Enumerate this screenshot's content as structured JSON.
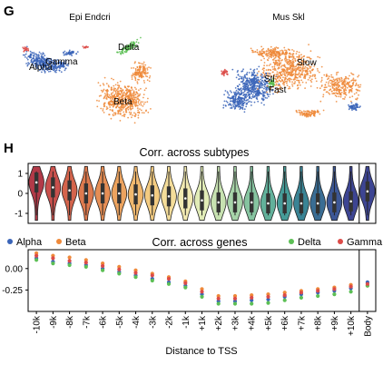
{
  "panels": {
    "g": {
      "letter": "G",
      "epi_title": "Epi Endcri",
      "mus_title": "Mus Skl",
      "epi_labels": [
        "Delta",
        "Alpha",
        "Gamma",
        "Beta"
      ],
      "mus_labels": [
        "Slow",
        "Stl",
        "Fast"
      ]
    },
    "h": {
      "letter": "H"
    }
  },
  "colors": {
    "alpha": "#3a64b8",
    "beta": "#ef8a3a",
    "delta": "#5cbf55",
    "gamma": "#dc4b48",
    "violin_palette": [
      "#b23a48",
      "#c9504c",
      "#d4644c",
      "#de7a4e",
      "#e68e55",
      "#eca35f",
      "#f0b86e",
      "#f3cb81",
      "#f4dd9a",
      "#f1e9b1",
      "#e1ecb7",
      "#c7e2b1",
      "#a7d4a9",
      "#86c4a0",
      "#62b19b",
      "#469c98",
      "#3a8495",
      "#3a6d94",
      "#3c5796",
      "#3d4593"
    ]
  },
  "chart_data": [
    {
      "type": "violin",
      "title": "Corr. across subtypes",
      "categories": [
        "-10k",
        "-9k",
        "-8k",
        "-7k",
        "-6k",
        "-5k",
        "-4k",
        "-3k",
        "-2k",
        "-1k",
        "+1k",
        "+2k",
        "+3k",
        "+4k",
        "+5k",
        "+6k",
        "+7k",
        "+8k",
        "+9k",
        "+10k",
        "Body"
      ],
      "yticks": [
        -1,
        0,
        1
      ],
      "ylim": [
        -1.5,
        1.5
      ],
      "medians": [
        0.55,
        0.3,
        0.15,
        0.0,
        0.0,
        0.0,
        -0.05,
        -0.1,
        -0.15,
        -0.25,
        -0.35,
        -0.45,
        -0.45,
        -0.45,
        -0.5,
        -0.5,
        -0.5,
        -0.5,
        -0.45,
        -0.4,
        0.1
      ],
      "separator_after": "+10k"
    },
    {
      "type": "scatter",
      "title": "Corr. across genes",
      "xlabel": "Distance to TSS",
      "categories": [
        "-10k",
        "-9k",
        "-8k",
        "-7k",
        "-6k",
        "-5k",
        "-4k",
        "-3k",
        "-2k",
        "-1k",
        "+1k",
        "+2k",
        "+3k",
        "+4k",
        "+5k",
        "+6k",
        "+7k",
        "+8k",
        "+9k",
        "+10k",
        "Body"
      ],
      "yticks": [
        0.0,
        -0.25
      ],
      "ytick_labels": [
        "0.00",
        "-0.25"
      ],
      "ylim": [
        -0.5,
        0.22
      ],
      "legend": [
        "Alpha",
        "Beta",
        "Delta",
        "Gamma"
      ],
      "legend_placement": "top",
      "series": [
        {
          "name": "Alpha",
          "values": [
            0.12,
            0.08,
            0.06,
            0.04,
            0.0,
            -0.04,
            -0.08,
            -0.12,
            -0.16,
            -0.2,
            -0.3,
            -0.38,
            -0.38,
            -0.37,
            -0.36,
            -0.33,
            -0.3,
            -0.28,
            -0.26,
            -0.23,
            -0.16
          ]
        },
        {
          "name": "Beta",
          "values": [
            0.18,
            0.15,
            0.13,
            0.1,
            0.06,
            0.02,
            -0.02,
            -0.06,
            -0.1,
            -0.15,
            -0.24,
            -0.32,
            -0.32,
            -0.31,
            -0.3,
            -0.28,
            -0.26,
            -0.24,
            -0.22,
            -0.19,
            -0.2
          ]
        },
        {
          "name": "Delta",
          "values": [
            0.1,
            0.06,
            0.04,
            0.02,
            -0.02,
            -0.06,
            -0.1,
            -0.14,
            -0.18,
            -0.22,
            -0.33,
            -0.41,
            -0.41,
            -0.41,
            -0.4,
            -0.37,
            -0.34,
            -0.32,
            -0.3,
            -0.27,
            -0.2
          ]
        },
        {
          "name": "Gamma",
          "values": [
            0.15,
            0.12,
            0.09,
            0.07,
            0.03,
            -0.01,
            -0.05,
            -0.08,
            -0.12,
            -0.17,
            -0.27,
            -0.35,
            -0.35,
            -0.34,
            -0.33,
            -0.31,
            -0.28,
            -0.26,
            -0.24,
            -0.21,
            -0.18
          ]
        }
      ]
    }
  ]
}
